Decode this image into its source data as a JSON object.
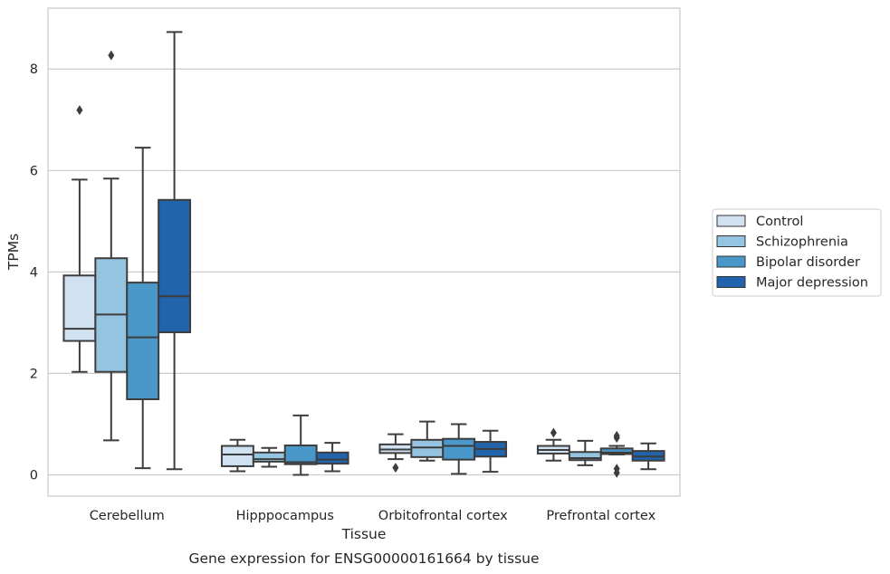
{
  "chart_data": {
    "type": "box",
    "caption": "Gene expression for ENSG00000161664 by tissue",
    "xlabel": "Tissue",
    "ylabel": "TPMs",
    "ylim": [
      -0.42,
      9.2
    ],
    "yticks": [
      0,
      2,
      4,
      6,
      8
    ],
    "grid": true,
    "legend_position": "right",
    "categories": [
      "Cerebellum",
      "Hipppocampus",
      "Orbitofrontal cortex",
      "Prefrontal cortex"
    ],
    "series": [
      {
        "name": "Control",
        "color": "#d0e1f2",
        "boxes": [
          {
            "whislo": 2.03,
            "q1": 2.64,
            "med": 2.88,
            "q3": 3.93,
            "whishi": 5.82,
            "fliers": [
              7.19
            ]
          },
          {
            "whislo": 0.07,
            "q1": 0.17,
            "med": 0.4,
            "q3": 0.57,
            "whishi": 0.69,
            "fliers": []
          },
          {
            "whislo": 0.31,
            "q1": 0.43,
            "med": 0.5,
            "q3": 0.6,
            "whishi": 0.8,
            "fliers": [
              0.14
            ]
          },
          {
            "whislo": 0.28,
            "q1": 0.42,
            "med": 0.49,
            "q3": 0.57,
            "whishi": 0.69,
            "fliers": [
              0.83
            ]
          }
        ]
      },
      {
        "name": "Schizophrenia",
        "color": "#94c4df",
        "boxes": [
          {
            "whislo": 0.68,
            "q1": 2.03,
            "med": 3.16,
            "q3": 4.27,
            "whishi": 5.84,
            "fliers": [
              8.27
            ]
          },
          {
            "whislo": 0.16,
            "q1": 0.26,
            "med": 0.31,
            "q3": 0.44,
            "whishi": 0.53,
            "fliers": []
          },
          {
            "whislo": 0.28,
            "q1": 0.35,
            "med": 0.54,
            "q3": 0.69,
            "whishi": 1.05,
            "fliers": []
          },
          {
            "whislo": 0.19,
            "q1": 0.29,
            "med": 0.33,
            "q3": 0.45,
            "whishi": 0.67,
            "fliers": []
          }
        ]
      },
      {
        "name": "Bipolar disorder",
        "color": "#4a98c9",
        "boxes": [
          {
            "whislo": 0.13,
            "q1": 1.49,
            "med": 2.71,
            "q3": 3.79,
            "whishi": 6.45,
            "fliers": []
          },
          {
            "whislo": 0.0,
            "q1": 0.21,
            "med": 0.25,
            "q3": 0.58,
            "whishi": 1.17,
            "fliers": []
          },
          {
            "whislo": 0.02,
            "q1": 0.3,
            "med": 0.57,
            "q3": 0.71,
            "whishi": 1.0,
            "fliers": []
          },
          {
            "whislo": 0.4,
            "q1": 0.41,
            "med": 0.44,
            "q3": 0.52,
            "whishi": 0.57,
            "fliers": [
              0.04,
              0.12,
              0.73,
              0.77
            ]
          }
        ]
      },
      {
        "name": "Major depression",
        "color": "#2164ab",
        "boxes": [
          {
            "whislo": 0.11,
            "q1": 2.81,
            "med": 3.52,
            "q3": 5.42,
            "whishi": 8.73,
            "fliers": []
          },
          {
            "whislo": 0.07,
            "q1": 0.22,
            "med": 0.3,
            "q3": 0.44,
            "whishi": 0.63,
            "fliers": []
          },
          {
            "whislo": 0.06,
            "q1": 0.36,
            "med": 0.51,
            "q3": 0.65,
            "whishi": 0.87,
            "fliers": []
          },
          {
            "whislo": 0.11,
            "q1": 0.28,
            "med": 0.36,
            "q3": 0.47,
            "whishi": 0.62,
            "fliers": []
          }
        ]
      }
    ]
  }
}
